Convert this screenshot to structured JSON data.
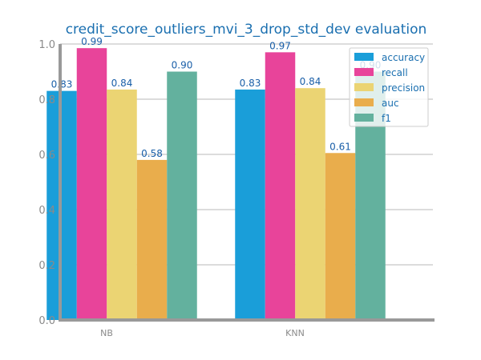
{
  "chart_data": {
    "type": "bar",
    "title": "credit_score_outliers_mvi_3_drop_std_dev evaluation",
    "xlabel": "",
    "ylabel": "",
    "ylim": [
      0,
      1.0
    ],
    "yticks": [
      "0.0",
      "0.2",
      "0.4",
      "0.6",
      "0.8",
      "1.0"
    ],
    "categories": [
      "NB",
      "KNN"
    ],
    "series": [
      {
        "name": "accuracy",
        "color": "#1a9ed9",
        "values": [
          0.83,
          0.835
        ],
        "labels": [
          "0.83",
          "0.83"
        ]
      },
      {
        "name": "recall",
        "color": "#e8449a",
        "values": [
          0.985,
          0.97
        ],
        "labels": [
          "0.99",
          "0.97"
        ]
      },
      {
        "name": "precision",
        "color": "#ebd473",
        "values": [
          0.835,
          0.84
        ],
        "labels": [
          "0.84",
          "0.84"
        ]
      },
      {
        "name": "auc",
        "color": "#e9ad4c",
        "values": [
          0.58,
          0.605
        ],
        "labels": [
          "0.58",
          "0.61"
        ]
      },
      {
        "name": "f1",
        "color": "#63b19e",
        "values": [
          0.9,
          0.9
        ],
        "labels": [
          "0.90",
          "0.90"
        ]
      }
    ],
    "grid": true,
    "legend_position": "top-right"
  }
}
